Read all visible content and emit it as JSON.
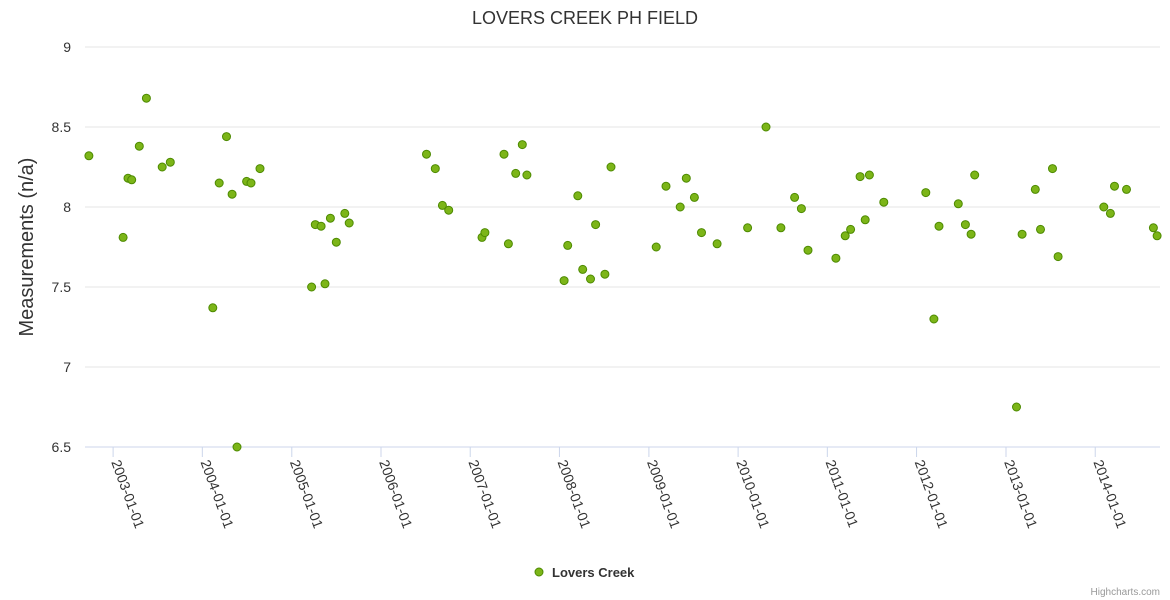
{
  "chart_data": {
    "type": "scatter",
    "title": "LOVERS CREEK PH FIELD",
    "xlabel": "",
    "ylabel": "Measurements (n/a)",
    "ylim": [
      6.5,
      9
    ],
    "yticks": [
      "6.5",
      "7",
      "7.5",
      "8",
      "8.5",
      "9"
    ],
    "xlim": [
      "2002-09-08",
      "2014-09-23"
    ],
    "xticks": [
      "2003-01-01",
      "2004-01-01",
      "2005-01-01",
      "2006-01-01",
      "2007-01-01",
      "2008-01-01",
      "2009-01-01",
      "2010-01-01",
      "2011-01-01",
      "2012-01-01",
      "2013-01-01",
      "2014-01-01"
    ],
    "grid": "horizontal",
    "legend_position": "bottom-center",
    "marker_color": "#7cb518",
    "marker_stroke": "#4d8a00",
    "series": [
      {
        "name": "Lovers Creek",
        "points": [
          [
            "2002-09-24",
            8.32
          ],
          [
            "2003-02-11",
            7.81
          ],
          [
            "2003-03-03",
            8.18
          ],
          [
            "2003-03-18",
            8.17
          ],
          [
            "2003-04-18",
            8.38
          ],
          [
            "2003-05-17",
            8.68
          ],
          [
            "2003-07-21",
            8.25
          ],
          [
            "2003-08-23",
            8.28
          ],
          [
            "2004-02-13",
            7.37
          ],
          [
            "2004-03-10",
            8.15
          ],
          [
            "2004-04-09",
            8.44
          ],
          [
            "2004-05-02",
            8.08
          ],
          [
            "2004-05-22",
            6.5
          ],
          [
            "2004-06-30",
            8.16
          ],
          [
            "2004-07-18",
            8.15
          ],
          [
            "2004-08-24",
            8.24
          ],
          [
            "2005-03-23",
            7.5
          ],
          [
            "2005-04-07",
            7.89
          ],
          [
            "2005-05-01",
            7.88
          ],
          [
            "2005-05-17",
            7.52
          ],
          [
            "2005-06-08",
            7.93
          ],
          [
            "2005-07-02",
            7.78
          ],
          [
            "2005-08-06",
            7.96
          ],
          [
            "2005-08-24",
            7.9
          ],
          [
            "2006-07-06",
            8.33
          ],
          [
            "2006-08-11",
            8.24
          ],
          [
            "2006-09-09",
            8.01
          ],
          [
            "2006-10-05",
            7.98
          ],
          [
            "2007-02-18",
            7.81
          ],
          [
            "2007-03-02",
            7.84
          ],
          [
            "2007-05-19",
            8.33
          ],
          [
            "2007-06-06",
            7.77
          ],
          [
            "2007-07-06",
            8.21
          ],
          [
            "2007-08-02",
            8.39
          ],
          [
            "2007-08-21",
            8.2
          ],
          [
            "2008-01-20",
            7.54
          ],
          [
            "2008-02-04",
            7.76
          ],
          [
            "2008-03-16",
            8.07
          ],
          [
            "2008-04-05",
            7.61
          ],
          [
            "2008-05-07",
            7.55
          ],
          [
            "2008-05-28",
            7.89
          ],
          [
            "2008-07-05",
            7.58
          ],
          [
            "2008-07-30",
            8.25
          ],
          [
            "2009-01-31",
            7.75
          ],
          [
            "2009-03-12",
            8.13
          ],
          [
            "2009-05-09",
            8.0
          ],
          [
            "2009-06-03",
            8.18
          ],
          [
            "2009-07-06",
            8.06
          ],
          [
            "2009-08-04",
            7.84
          ],
          [
            "2009-10-07",
            7.77
          ],
          [
            "2010-02-09",
            7.87
          ],
          [
            "2010-04-25",
            8.5
          ],
          [
            "2010-06-25",
            7.87
          ],
          [
            "2010-08-20",
            8.06
          ],
          [
            "2010-09-17",
            7.99
          ],
          [
            "2010-10-14",
            7.73
          ],
          [
            "2011-02-05",
            7.68
          ],
          [
            "2011-03-15",
            7.82
          ],
          [
            "2011-04-06",
            7.86
          ],
          [
            "2011-05-15",
            8.19
          ],
          [
            "2011-06-05",
            7.92
          ],
          [
            "2011-06-22",
            8.2
          ],
          [
            "2011-08-20",
            8.03
          ],
          [
            "2012-02-08",
            8.09
          ],
          [
            "2012-03-12",
            7.3
          ],
          [
            "2012-04-02",
            7.88
          ],
          [
            "2012-06-20",
            8.02
          ],
          [
            "2012-07-19",
            7.89
          ],
          [
            "2012-08-11",
            7.83
          ],
          [
            "2012-08-26",
            8.2
          ],
          [
            "2013-02-13",
            6.75
          ],
          [
            "2013-03-08",
            7.83
          ],
          [
            "2013-05-01",
            8.11
          ],
          [
            "2013-05-22",
            7.86
          ],
          [
            "2013-07-10",
            8.24
          ],
          [
            "2013-08-02",
            7.69
          ],
          [
            "2014-02-05",
            8.0
          ],
          [
            "2014-03-04",
            7.96
          ],
          [
            "2014-03-21",
            8.13
          ],
          [
            "2014-05-09",
            8.11
          ],
          [
            "2014-08-27",
            7.87
          ],
          [
            "2014-09-11",
            7.82
          ]
        ]
      }
    ]
  },
  "credits": "Highcharts.com"
}
